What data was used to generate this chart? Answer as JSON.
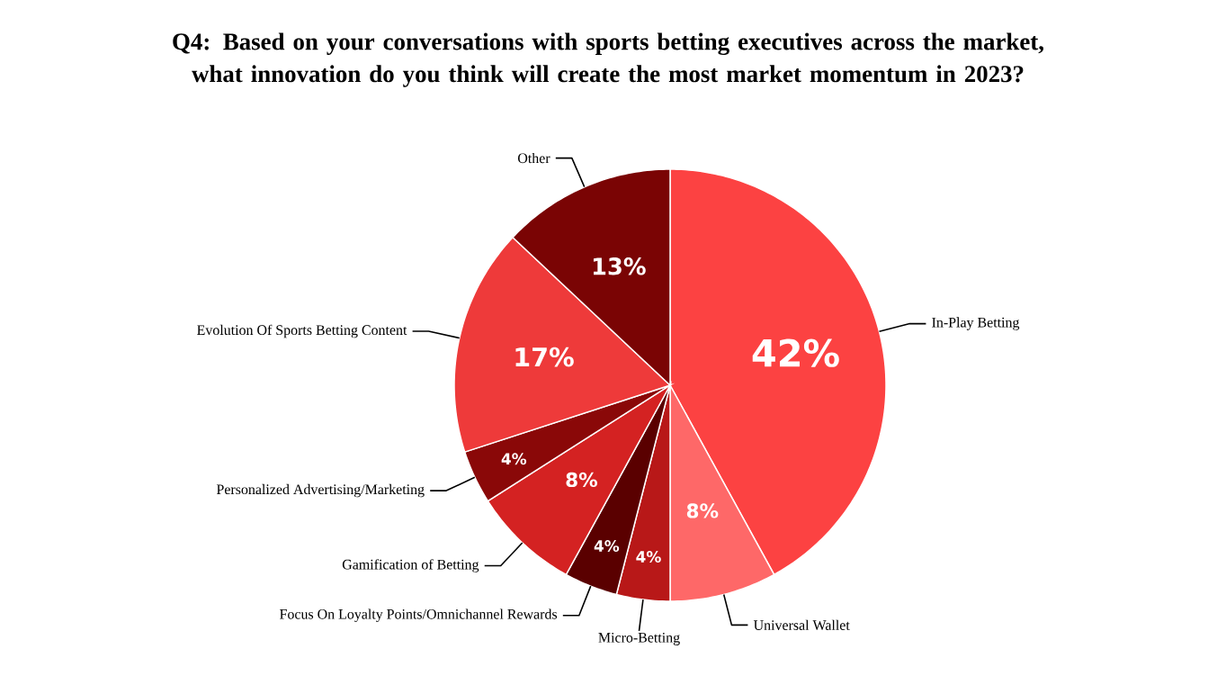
{
  "chart_data": {
    "type": "pie",
    "title": "Q4:  Based on your conversations with sports betting executives across the market, what innovation do you think will create the most market momentum in 2023?",
    "categories": [
      "In-Play Betting",
      "Universal Wallet",
      "Micro-Betting",
      "Focus On Loyalty Points/Omnichannel Rewards",
      "Gamification of Betting",
      "Personalized Advertising/Marketing",
      "Evolution Of Sports Betting Content",
      "Other"
    ],
    "values": [
      42,
      8,
      4,
      4,
      8,
      4,
      17,
      13
    ],
    "colors": [
      "#fc4242",
      "#fe6868",
      "#b81818",
      "#5a0000",
      "#d42222",
      "#8a0808",
      "#ee3a3a",
      "#7a0404"
    ],
    "value_labels": [
      "42%",
      "8%",
      "4%",
      "4%",
      "8%",
      "4%",
      "17%",
      "13%"
    ]
  }
}
